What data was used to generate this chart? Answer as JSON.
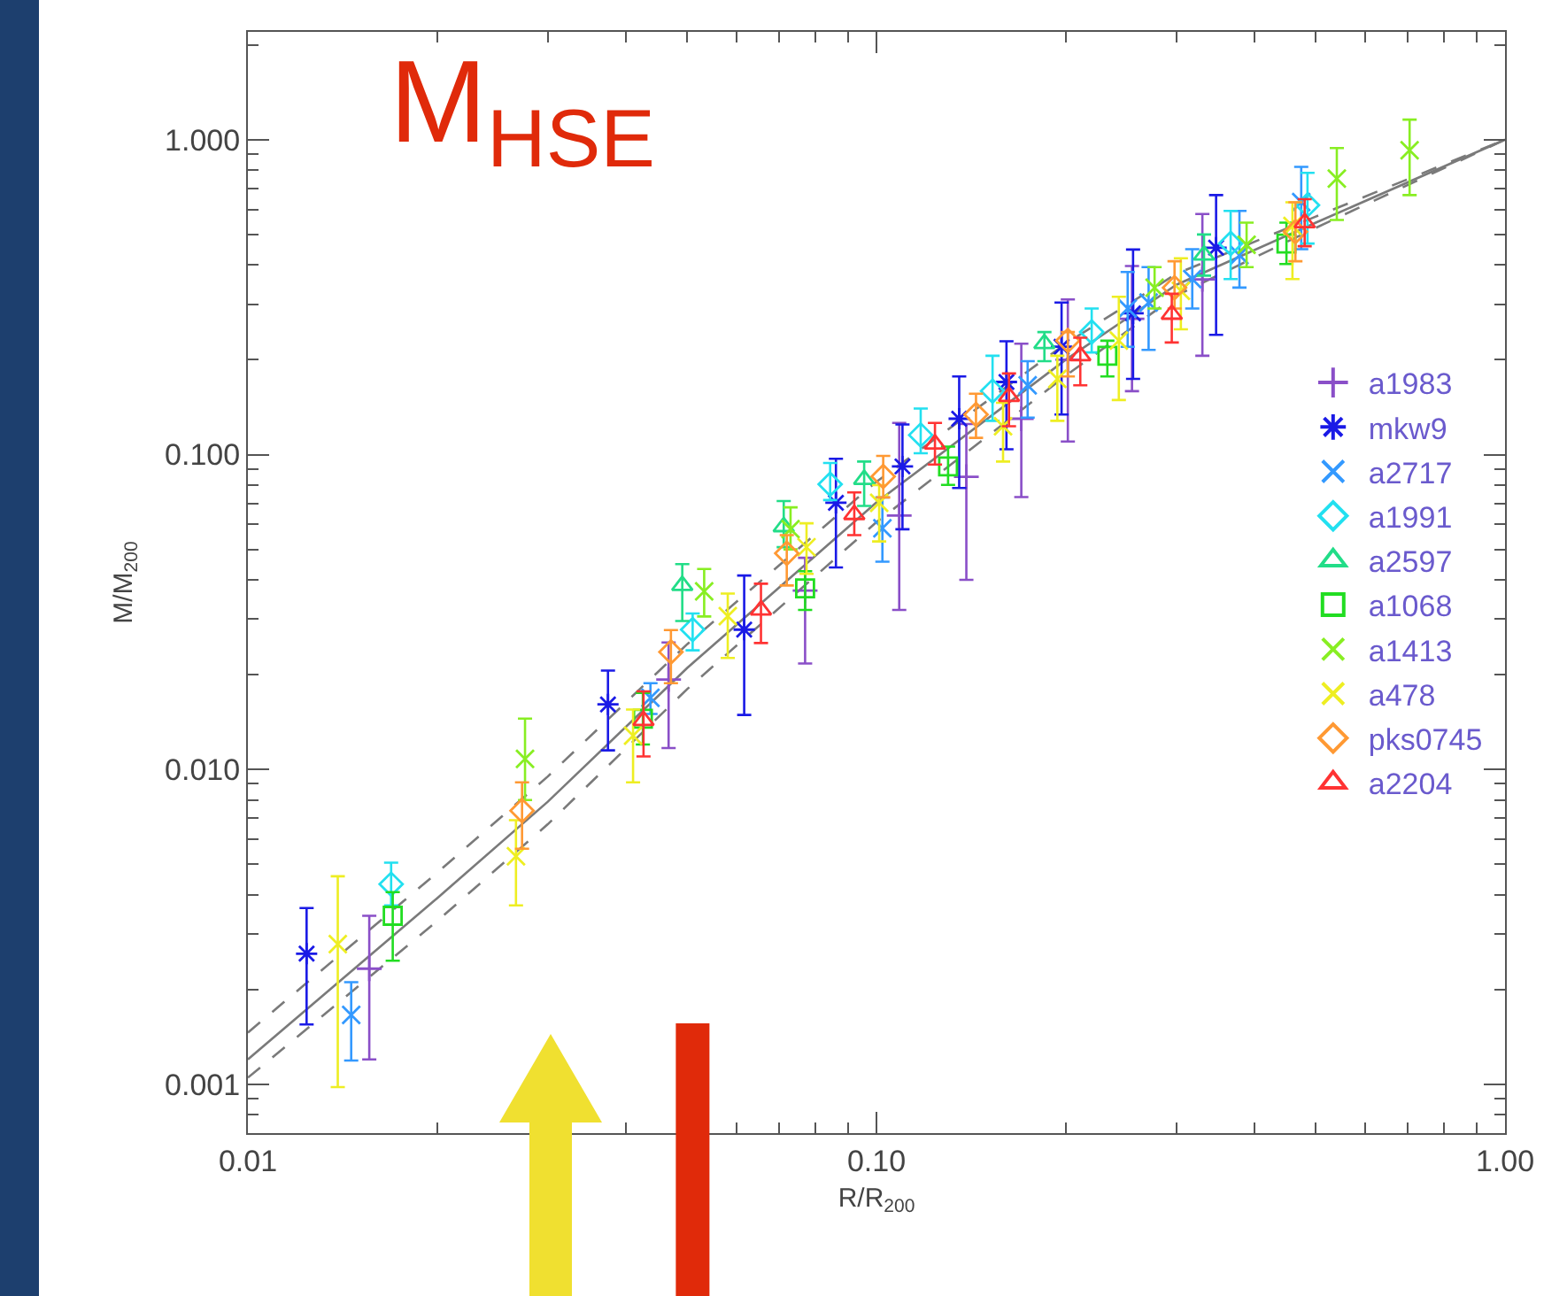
{
  "chart_data": {
    "type": "scatter",
    "xlabel": "R/R$_{200}$",
    "ylabel": "M/M$_{200}$",
    "annotations": [
      "M$_{HSE}$"
    ],
    "ref_lines": [
      {
        "axis": "x",
        "value": 0.051,
        "color": "#e02a0a"
      }
    ],
    "log": "xy",
    "grid": false,
    "legend": "right",
    "xlim": [
      0.01,
      1
    ],
    "xticks": [
      0.01,
      {
        "value": 0.1,
        "label": "0.10"
      },
      {
        "value": 1,
        "label": "1.00"
      }
    ],
    "ylim": [
      0.0007,
      2.2
    ],
    "yticks": [
      0.001,
      {
        "value": 0.01,
        "label": "0.010"
      },
      {
        "value": 0.1,
        "label": "0.100"
      },
      {
        "value": 1,
        "label": "1.000"
      }
    ],
    "series": [
      {
        "type": "line",
        "color": "#7a7a7a",
        "line_style": "solid",
        "marker": "none",
        "x": [
          0.01,
          0.02,
          0.03,
          0.05,
          0.1,
          0.2,
          0.3,
          0.5,
          1
        ],
        "values": [
          0.0012,
          0.0039,
          0.0079,
          0.021,
          0.0705,
          0.2,
          0.346,
          0.545,
          1
        ]
      },
      {
        "type": "line",
        "color": "#7a7a7a",
        "line_style": "dashed",
        "marker": "none",
        "x": [
          0.01,
          0.02,
          0.03,
          0.05,
          0.1,
          0.2,
          0.3,
          0.5,
          1
        ],
        "values": [
          0.00146,
          0.0047,
          0.0095,
          0.025,
          0.082,
          0.225,
          0.375,
          0.57,
          1
        ]
      },
      {
        "type": "line",
        "color": "#7a7a7a",
        "line_style": "dashed",
        "marker": "none",
        "x": [
          0.01,
          0.02,
          0.03,
          0.05,
          0.1,
          0.2,
          0.3,
          0.5,
          1
        ],
        "values": [
          0.00105,
          0.0033,
          0.0067,
          0.018,
          0.061,
          0.178,
          0.32,
          0.525,
          1
        ]
      },
      {
        "name": "a1983",
        "color": "#8a4fc8",
        "marker": "cross",
        "x": [
          0.0156,
          0.0467,
          0.077,
          0.1087,
          0.139,
          0.17,
          0.2016,
          0.255,
          0.33
        ],
        "values": [
          0.00233,
          0.0193,
          0.037,
          0.064,
          0.085,
          0.13,
          0.2,
          0.27,
          0.36
        ],
        "errors": [
          [
            0.0012,
            0.00343
          ],
          [
            0.0117,
            0.0253
          ],
          [
            0.0217,
            0.047
          ],
          [
            0.0321,
            0.126
          ],
          [
            0.04,
            0.125
          ],
          [
            0.0733,
            0.225
          ],
          [
            0.11,
            0.311
          ],
          [
            0.159,
            0.397
          ],
          [
            0.206,
            0.581
          ]
        ]
      },
      {
        "name": "mkw9",
        "color": "#1a1ae6",
        "x": [
          0.0124,
          0.0374,
          0.0616,
          0.0862,
          0.11,
          0.1354,
          0.161,
          0.197,
          0.256,
          0.347
        ],
        "values": [
          0.0026,
          0.0161,
          0.0278,
          0.0703,
          0.0917,
          0.13,
          0.17,
          0.22,
          0.281,
          0.454
        ],
        "errors": [
          [
            0.00155,
            0.00363
          ],
          [
            0.0115,
            0.0206
          ],
          [
            0.0149,
            0.0413
          ],
          [
            0.0438,
            0.097
          ],
          [
            0.0579,
            0.1246
          ],
          [
            0.0783,
            0.177
          ],
          [
            0.104,
            0.229
          ],
          [
            0.134,
            0.304
          ],
          [
            0.174,
            0.448
          ],
          [
            0.24,
            0.667
          ]
        ]
      },
      {
        "name": "a2717",
        "color": "#3399ff",
        "marker": "x",
        "x": [
          0.0146,
          0.0437,
          0.1022,
          0.174,
          0.251,
          0.271,
          0.318,
          0.378,
          0.474
        ],
        "values": [
          0.00166,
          0.0169,
          0.0583,
          0.166,
          0.291,
          0.304,
          0.361,
          0.43,
          0.634
        ],
        "errors": [
          [
            0.00119,
            0.00211
          ],
          [
            0.015,
            0.0188
          ],
          [
            0.0457,
            0.0731
          ],
          [
            0.131,
            0.198
          ],
          [
            0.22,
            0.38
          ],
          [
            0.215,
            0.394
          ],
          [
            0.291,
            0.449
          ],
          [
            0.339,
            0.594
          ],
          [
            0.449,
            0.82
          ]
        ]
      },
      {
        "name": "a1991",
        "color": "#22e0f0",
        "marker": "diamond",
        "x": [
          0.0169,
          0.051,
          0.0844,
          0.1176,
          0.153,
          0.22,
          0.366,
          0.485
        ],
        "values": [
          0.00432,
          0.0278,
          0.0805,
          0.1154,
          0.159,
          0.245,
          0.468,
          0.62
        ],
        "errors": [
          [
            0.0037,
            0.00506
          ],
          [
            0.0239,
            0.0313
          ],
          [
            0.0717,
            0.094
          ],
          [
            0.101,
            0.14
          ],
          [
            0.128,
            0.206
          ],
          [
            0.211,
            0.291
          ],
          [
            0.361,
            0.594
          ],
          [
            0.468,
            0.785
          ]
        ]
      },
      {
        "name": "a2597",
        "color": "#22dd88",
        "marker": "triangle",
        "x": [
          0.0491,
          0.0712,
          0.0956,
          0.185,
          0.332
        ],
        "values": [
          0.0384,
          0.059,
          0.0834,
          0.225,
          0.43
        ],
        "errors": [
          [
            0.0296,
            0.0449
          ],
          [
            0.0508,
            0.0712
          ],
          [
            0.0687,
            0.095
          ],
          [
            0.198,
            0.245
          ],
          [
            0.37,
            0.5
          ]
        ]
      },
      {
        "name": "a1068",
        "color": "#22dd22",
        "marker": "square",
        "x": [
          0.017,
          0.0425,
          0.077,
          0.13,
          0.233,
          0.449
        ],
        "values": [
          0.00343,
          0.0145,
          0.0376,
          0.0917,
          0.206,
          0.468
        ],
        "errors": [
          [
            0.00247,
            0.00408
          ],
          [
            0.012,
            0.0175
          ],
          [
            0.0321,
            0.0426
          ],
          [
            0.0801,
            0.106
          ],
          [
            0.177,
            0.23
          ],
          [
            0.403,
            0.545
          ]
        ]
      },
      {
        "name": "a1413",
        "color": "#88ee22",
        "marker": "x",
        "x": [
          0.0276,
          0.0532,
          0.073,
          0.277,
          0.388,
          0.54,
          0.705
        ],
        "values": [
          0.0108,
          0.0368,
          0.058,
          0.339,
          0.464,
          0.752,
          0.925
        ],
        "errors": [
          [
            0.008,
            0.0145
          ],
          [
            0.0306,
            0.0433
          ],
          [
            0.05,
            0.068
          ],
          [
            0.291,
            0.394
          ],
          [
            0.394,
            0.545
          ],
          [
            0.556,
            0.941
          ],
          [
            0.667,
            1.158
          ]
        ]
      },
      {
        "name": "a478",
        "color": "#eeee22",
        "marker": "x",
        "x": [
          0.0139,
          0.0267,
          0.041,
          0.058,
          0.0774,
          0.101,
          0.159,
          0.194,
          0.243,
          0.305,
          0.459
        ],
        "values": [
          0.00279,
          0.0053,
          0.0128,
          0.0307,
          0.0508,
          0.0703,
          0.123,
          0.174,
          0.23,
          0.331,
          0.532
        ],
        "errors": [
          [
            0.00098,
            0.00458
          ],
          [
            0.0037,
            0.0069
          ],
          [
            0.0091,
            0.0155
          ],
          [
            0.0226,
            0.0362
          ],
          [
            0.0418,
            0.0605
          ],
          [
            0.053,
            0.08
          ],
          [
            0.095,
            0.146
          ],
          [
            0.128,
            0.206
          ],
          [
            0.149,
            0.317
          ],
          [
            0.25,
            0.42
          ],
          [
            0.361,
            0.633
          ]
        ]
      },
      {
        "name": "pks0745",
        "color": "#ff9933",
        "marker": "diamond",
        "x": [
          0.0273,
          0.0471,
          0.072,
          0.1025,
          0.144,
          0.2016,
          0.298,
          0.464
        ],
        "values": [
          0.0074,
          0.0236,
          0.0486,
          0.0852,
          0.134,
          0.23,
          0.339,
          0.51
        ],
        "errors": [
          [
            0.0056,
            0.0091
          ],
          [
            0.0188,
            0.0277
          ],
          [
            0.0384,
            0.0555
          ],
          [
            0.0731,
            0.099
          ],
          [
            0.113,
            0.156
          ],
          [
            0.177,
            0.245
          ],
          [
            0.291,
            0.411
          ],
          [
            0.411,
            0.633
          ]
        ]
      },
      {
        "name": "a2204",
        "color": "#ff3333",
        "marker": "triangle",
        "x": [
          0.0426,
          0.0655,
          0.0922,
          0.1239,
          0.1625,
          0.211,
          0.295,
          0.48
        ],
        "values": [
          0.0143,
          0.0321,
          0.0645,
          0.108,
          0.153,
          0.206,
          0.279,
          0.545
        ],
        "errors": [
          [
            0.011,
            0.0177
          ],
          [
            0.0252,
            0.0389
          ],
          [
            0.0555,
            0.0758
          ],
          [
            0.093,
            0.126
          ],
          [
            0.123,
            0.181
          ],
          [
            0.166,
            0.235
          ],
          [
            0.227,
            0.324
          ],
          [
            0.459,
            0.647
          ]
        ]
      }
    ]
  }
}
